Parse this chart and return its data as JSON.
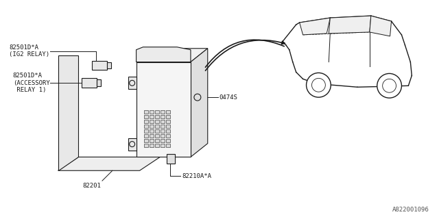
{
  "title": "",
  "background_color": "#ffffff",
  "border_color": "#000000",
  "diagram_color": "#1a1a1a",
  "part_numbers": {
    "ig2_relay": "82501D*A\n(IG2 RELAY)",
    "acc_relay": "82501D*A\n(ACCESSORY\n RELAY 1)",
    "screw": "0474S",
    "fuse_box": "82201",
    "fuse_box_inner": "82210A*A"
  },
  "watermark": "A822001096",
  "line_width": 0.8
}
